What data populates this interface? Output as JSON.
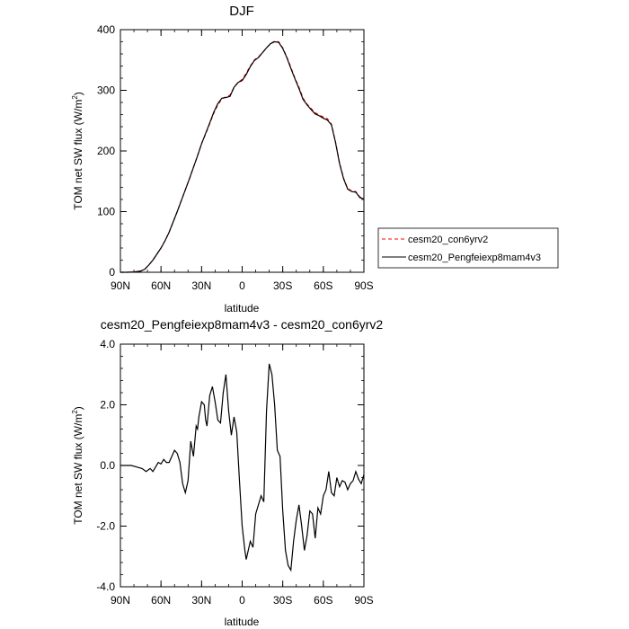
{
  "chart_data": [
    {
      "type": "line",
      "title": "DJF",
      "xlabel": "latitude",
      "ylabel": "TOM net SW flux (W/m",
      "ylabel_sup": "2",
      "ylabel_end": ")",
      "xlim": [
        90,
        -90
      ],
      "ylim": [
        0,
        400
      ],
      "x_ticks": [
        {
          "value": 90,
          "label": "90N"
        },
        {
          "value": 60,
          "label": "60N"
        },
        {
          "value": 30,
          "label": "30N"
        },
        {
          "value": 0,
          "label": "0"
        },
        {
          "value": -30,
          "label": "30S"
        },
        {
          "value": -60,
          "label": "60S"
        },
        {
          "value": -90,
          "label": "90S"
        }
      ],
      "y_ticks": [
        {
          "value": 0,
          "label": "0"
        },
        {
          "value": 100,
          "label": "100"
        },
        {
          "value": 200,
          "label": "200"
        },
        {
          "value": 300,
          "label": "300"
        },
        {
          "value": 400,
          "label": "400"
        }
      ],
      "legend": {
        "placement": "right",
        "entries": [
          {
            "name": "cesm20_con6yrv2",
            "color": "#ff0000",
            "style": "dashed"
          },
          {
            "name": "cesm20_Pengfeiexp8mam4v3",
            "color": "#000000",
            "style": "solid"
          }
        ]
      },
      "x": [
        90,
        85,
        80,
        75,
        72,
        69,
        66,
        63,
        60,
        57,
        54,
        51,
        48,
        45,
        42,
        39,
        36,
        33,
        30,
        27,
        24,
        21,
        18,
        15,
        12,
        9,
        6,
        3,
        0,
        -3,
        -6,
        -9,
        -12,
        -15,
        -18,
        -21,
        -24,
        -27,
        -30,
        -33,
        -36,
        -39,
        -42,
        -45,
        -48,
        -51,
        -54,
        -57,
        -60,
        -63,
        -66,
        -69,
        -72,
        -75,
        -78,
        -81,
        -84,
        -87,
        -90
      ],
      "series": [
        {
          "name": "cesm20_con6yrv2",
          "color": "#ff0000",
          "style": "dashed",
          "values": [
            0,
            0,
            0.5,
            2,
            5,
            12,
            20,
            30,
            40,
            52,
            66,
            83,
            100,
            118,
            136,
            154,
            173,
            192,
            212,
            228,
            245,
            262,
            276,
            286,
            289,
            292,
            305,
            313,
            318,
            328,
            340,
            350,
            355,
            362,
            370,
            377,
            381,
            380,
            370,
            355,
            338,
            320,
            305,
            287,
            277,
            270,
            263,
            259,
            256,
            253,
            244,
            215,
            180,
            155,
            138,
            134,
            133,
            124,
            122
          ]
        },
        {
          "name": "cesm20_Pengfeiexp8mam4v3",
          "color": "#000000",
          "style": "solid",
          "values": [
            0,
            0,
            0.5,
            2,
            5,
            12,
            20,
            30,
            40,
            52,
            66,
            83,
            100,
            118,
            136,
            154,
            173,
            192,
            212,
            229,
            246,
            264,
            278,
            287,
            288,
            290,
            305,
            313,
            316,
            326,
            339,
            349,
            354,
            362,
            370,
            377,
            380,
            379,
            369,
            354,
            336,
            319,
            303,
            285,
            276,
            268,
            261,
            258,
            254,
            251,
            243,
            214,
            179,
            154,
            137,
            133,
            132,
            123,
            121
          ]
        }
      ]
    },
    {
      "type": "line",
      "title": "cesm20_Pengfeiexp8mam4v3 - cesm20_con6yrv2",
      "xlabel": "latitude",
      "ylabel": "TOM net SW flux (W/m",
      "ylabel_sup": "2",
      "ylabel_end": ")",
      "xlim": [
        90,
        -90
      ],
      "ylim": [
        -4,
        4
      ],
      "x_ticks": [
        {
          "value": 90,
          "label": "90N"
        },
        {
          "value": 60,
          "label": "60N"
        },
        {
          "value": 30,
          "label": "30N"
        },
        {
          "value": 0,
          "label": "0"
        },
        {
          "value": -30,
          "label": "30S"
        },
        {
          "value": -60,
          "label": "60S"
        },
        {
          "value": -90,
          "label": "90S"
        }
      ],
      "y_ticks": [
        {
          "value": -4,
          "label": "-4.0"
        },
        {
          "value": -2,
          "label": "-2.0"
        },
        {
          "value": 0,
          "label": "0.0"
        },
        {
          "value": 2,
          "label": "2.0"
        },
        {
          "value": 4,
          "label": "4.0"
        }
      ],
      "series": [
        {
          "name": "",
          "color": "#000000",
          "style": "solid",
          "x": [
            90,
            82,
            78,
            74,
            71,
            68,
            66,
            64,
            62,
            60,
            58,
            56,
            54,
            52,
            50,
            48,
            46,
            44,
            42,
            40,
            38,
            36,
            34,
            33,
            32,
            30,
            28,
            27,
            26,
            24,
            22,
            20,
            18,
            16,
            14,
            12,
            10,
            8,
            6,
            4,
            2,
            0,
            -1,
            -2,
            -3,
            -4,
            -5,
            -6,
            -8,
            -10,
            -12,
            -14,
            -16,
            -18,
            -20,
            -22,
            -24,
            -26,
            -28,
            -30,
            -32,
            -34,
            -36,
            -38,
            -40,
            -42,
            -44,
            -46,
            -48,
            -50,
            -52,
            -54,
            -56,
            -58,
            -60,
            -62,
            -64,
            -66,
            -68,
            -70,
            -72,
            -74,
            -76,
            -78,
            -80,
            -82,
            -84,
            -86,
            -88,
            -90
          ],
          "values": [
            0,
            0,
            -0.05,
            -0.1,
            -0.2,
            -0.1,
            -0.2,
            -0.05,
            0.1,
            0.05,
            0.2,
            0.1,
            0.1,
            0.3,
            0.5,
            0.4,
            0.1,
            -0.6,
            -0.9,
            -0.5,
            0.8,
            0.3,
            1.3,
            1.2,
            1.6,
            2.1,
            2.0,
            1.5,
            1.3,
            2.3,
            2.6,
            2.1,
            1.5,
            1.4,
            2.4,
            3.0,
            1.8,
            1.0,
            1.6,
            1.1,
            -0.5,
            -2.0,
            -2.4,
            -2.8,
            -3.1,
            -2.9,
            -2.7,
            -2.5,
            -2.7,
            -1.6,
            -1.3,
            -1.0,
            -1.2,
            1.8,
            3.35,
            3.0,
            2.0,
            0.5,
            0.3,
            -1.5,
            -2.8,
            -3.3,
            -3.45,
            -2.5,
            -1.8,
            -1.3,
            -2.0,
            -2.8,
            -2.3,
            -1.5,
            -1.6,
            -2.4,
            -1.4,
            -1.6,
            -1.0,
            -0.8,
            -0.2,
            -0.9,
            -1.0,
            -0.4,
            -0.7,
            -0.5,
            -0.55,
            -0.8,
            -0.6,
            -0.5,
            -0.2,
            -0.45,
            -0.6,
            -0.3
          ]
        }
      ]
    }
  ]
}
